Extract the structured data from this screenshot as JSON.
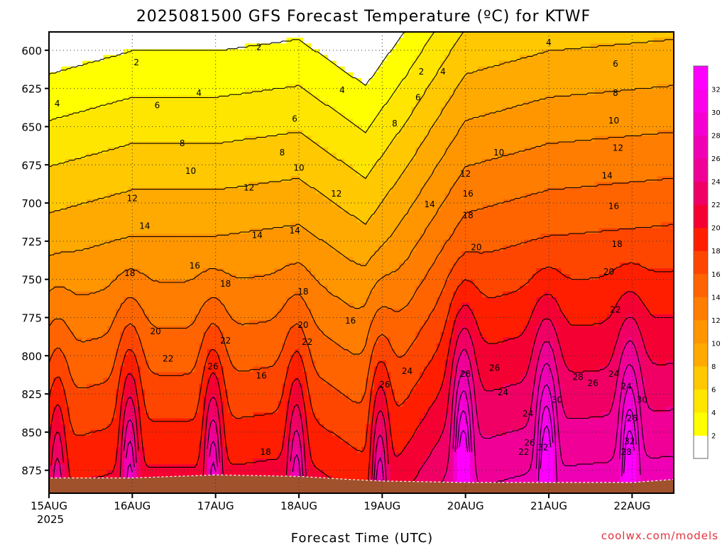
{
  "chart_data": {
    "type": "heatmap",
    "title": "2025081500 GFS Forecast Temperature (ºC) for KTWF",
    "xlabel": "Forecast Time (UTC)",
    "ylabel": "",
    "credit": "coolwx.com/models",
    "x_ticks": [
      "15AUG",
      "16AUG",
      "17AUG",
      "18AUG",
      "19AUG",
      "20AUG",
      "21AUG",
      "22AUG"
    ],
    "x_year": "2025",
    "xlim_days": [
      0,
      7.5
    ],
    "y_ticks": [
      600,
      625,
      650,
      675,
      700,
      725,
      750,
      775,
      800,
      825,
      850,
      875
    ],
    "ylim": [
      588,
      890
    ],
    "y_inverted": true,
    "grid": true,
    "legend": "right colorbar",
    "colorbar": {
      "labels": [
        2,
        4,
        6,
        8,
        10,
        12,
        14,
        16,
        18,
        20,
        22,
        24,
        26,
        28,
        30,
        32
      ],
      "bands": [
        {
          "min": 0,
          "color": "#ffffff"
        },
        {
          "min": 2,
          "color": "#ffff00"
        },
        {
          "min": 4,
          "color": "#ffe600"
        },
        {
          "min": 6,
          "color": "#ffc800"
        },
        {
          "min": 8,
          "color": "#ffaa00"
        },
        {
          "min": 10,
          "color": "#ff9600"
        },
        {
          "min": 12,
          "color": "#ff7d00"
        },
        {
          "min": 14,
          "color": "#ff6400"
        },
        {
          "min": 16,
          "color": "#ff4600"
        },
        {
          "min": 18,
          "color": "#ff1e00"
        },
        {
          "min": 20,
          "color": "#f50032"
        },
        {
          "min": 22,
          "color": "#f00064"
        },
        {
          "min": 24,
          "color": "#f00096"
        },
        {
          "min": 26,
          "color": "#f000b4"
        },
        {
          "min": 28,
          "color": "#f500d2"
        },
        {
          "min": 30,
          "color": "#fa00eb"
        },
        {
          "min": 32,
          "color": "#ff00ff"
        }
      ]
    },
    "temperature_model": {
      "description": "temperature vs pressure: T = a + b*(p-600) + diurnal amplitude peaking near surface each afternoon",
      "base_at_600hPa": [
        {
          "day": 0.0,
          "t": 1.0
        },
        {
          "day": 1.0,
          "t": 2.0
        },
        {
          "day": 2.0,
          "t": 2.0
        },
        {
          "day": 3.0,
          "t": 2.5
        },
        {
          "day": 3.8,
          "t": 0.5
        },
        {
          "day": 4.3,
          "t": 3.0
        },
        {
          "day": 5.0,
          "t": 7.0
        },
        {
          "day": 6.0,
          "t": 8.0
        },
        {
          "day": 7.5,
          "t": 8.5
        }
      ],
      "lapse_per_hPa": 0.066,
      "diurnal_peaks": [
        {
          "day": 0.1,
          "amp": 6
        },
        {
          "day": 0.97,
          "amp": 9
        },
        {
          "day": 1.97,
          "amp": 9
        },
        {
          "day": 2.97,
          "amp": 7
        },
        {
          "day": 3.97,
          "amp": 8
        },
        {
          "day": 4.97,
          "amp": 12
        },
        {
          "day": 5.97,
          "amp": 11
        },
        {
          "day": 6.97,
          "amp": 10
        }
      ]
    },
    "contour_levels": [
      2,
      4,
      6,
      8,
      10,
      12,
      14,
      16,
      18,
      20,
      22,
      24,
      26,
      28,
      30,
      32
    ],
    "contour_labels": [
      {
        "day": 0.1,
        "p": 635,
        "t": 4
      },
      {
        "day": 1.05,
        "p": 608,
        "t": 2
      },
      {
        "day": 2.52,
        "p": 598,
        "t": 2
      },
      {
        "day": 4.47,
        "p": 614,
        "t": 2
      },
      {
        "day": 4.73,
        "p": 614,
        "t": 4
      },
      {
        "day": 3.52,
        "p": 626,
        "t": 4
      },
      {
        "day": 1.8,
        "p": 628,
        "t": 4
      },
      {
        "day": 1.3,
        "p": 636,
        "t": 6
      },
      {
        "day": 4.43,
        "p": 631,
        "t": 6
      },
      {
        "day": 2.95,
        "p": 645,
        "t": 6
      },
      {
        "day": 1.6,
        "p": 661,
        "t": 8
      },
      {
        "day": 2.8,
        "p": 667,
        "t": 8
      },
      {
        "day": 4.15,
        "p": 648,
        "t": 8
      },
      {
        "day": 5.4,
        "p": 667,
        "t": 10
      },
      {
        "day": 1.7,
        "p": 679,
        "t": 10
      },
      {
        "day": 3.0,
        "p": 677,
        "t": 10
      },
      {
        "day": 1.0,
        "p": 697,
        "t": 12
      },
      {
        "day": 2.4,
        "p": 690,
        "t": 12
      },
      {
        "day": 3.45,
        "p": 694,
        "t": 12
      },
      {
        "day": 5.0,
        "p": 681,
        "t": 12
      },
      {
        "day": 1.15,
        "p": 715,
        "t": 14
      },
      {
        "day": 2.5,
        "p": 721,
        "t": 14
      },
      {
        "day": 2.95,
        "p": 718,
        "t": 14
      },
      {
        "day": 4.57,
        "p": 701,
        "t": 14
      },
      {
        "day": 5.03,
        "p": 694,
        "t": 16
      },
      {
        "day": 0.97,
        "p": 746,
        "t": 18
      },
      {
        "day": 1.75,
        "p": 741,
        "t": 16
      },
      {
        "day": 2.12,
        "p": 753,
        "t": 18
      },
      {
        "day": 3.05,
        "p": 758,
        "t": 18
      },
      {
        "day": 3.62,
        "p": 777,
        "t": 16
      },
      {
        "day": 5.03,
        "p": 708,
        "t": 18
      },
      {
        "day": 5.13,
        "p": 729,
        "t": 20
      },
      {
        "day": 1.28,
        "p": 784,
        "t": 20
      },
      {
        "day": 2.12,
        "p": 790,
        "t": 22
      },
      {
        "day": 3.05,
        "p": 780,
        "t": 20
      },
      {
        "day": 3.1,
        "p": 791,
        "t": 22
      },
      {
        "day": 1.43,
        "p": 802,
        "t": 22
      },
      {
        "day": 1.97,
        "p": 807,
        "t": 26
      },
      {
        "day": 2.55,
        "p": 813,
        "t": 16
      },
      {
        "day": 2.6,
        "p": 863,
        "t": 18
      },
      {
        "day": 4.3,
        "p": 810,
        "t": 24
      },
      {
        "day": 4.03,
        "p": 819,
        "t": 26
      },
      {
        "day": 5.0,
        "p": 812,
        "t": 28
      },
      {
        "day": 5.35,
        "p": 808,
        "t": 26
      },
      {
        "day": 5.45,
        "p": 824,
        "t": 24
      },
      {
        "day": 5.75,
        "p": 838,
        "t": 24
      },
      {
        "day": 5.77,
        "p": 857,
        "t": 26
      },
      {
        "day": 5.7,
        "p": 863,
        "t": 22
      },
      {
        "day": 5.93,
        "p": 860,
        "t": 32
      },
      {
        "day": 6.1,
        "p": 829,
        "t": 30
      },
      {
        "day": 6.35,
        "p": 814,
        "t": 28
      },
      {
        "day": 6.53,
        "p": 818,
        "t": 26
      },
      {
        "day": 6.78,
        "p": 812,
        "t": 24
      },
      {
        "day": 6.93,
        "p": 820,
        "t": 24
      },
      {
        "day": 7.0,
        "p": 841,
        "t": 26
      },
      {
        "day": 7.12,
        "p": 829,
        "t": 30
      },
      {
        "day": 6.97,
        "p": 856,
        "t": 32
      },
      {
        "day": 6.93,
        "p": 863,
        "t": 28
      },
      {
        "day": 6.8,
        "p": 770,
        "t": 22
      },
      {
        "day": 6.72,
        "p": 745,
        "t": 20
      },
      {
        "day": 6.82,
        "p": 727,
        "t": 18
      },
      {
        "day": 6.78,
        "p": 702,
        "t": 16
      },
      {
        "day": 6.7,
        "p": 682,
        "t": 14
      },
      {
        "day": 6.83,
        "p": 664,
        "t": 12
      },
      {
        "day": 6.78,
        "p": 646,
        "t": 10
      },
      {
        "day": 6.8,
        "p": 628,
        "t": 8
      },
      {
        "day": 6.8,
        "p": 609,
        "t": 6
      },
      {
        "day": 6.0,
        "p": 595,
        "t": 4
      }
    ],
    "terrain_pressure": [
      {
        "day": 0.0,
        "p": 880
      },
      {
        "day": 1.0,
        "p": 880
      },
      {
        "day": 2.0,
        "p": 878
      },
      {
        "day": 3.0,
        "p": 879
      },
      {
        "day": 3.6,
        "p": 881
      },
      {
        "day": 4.0,
        "p": 882
      },
      {
        "day": 5.0,
        "p": 883
      },
      {
        "day": 6.0,
        "p": 883
      },
      {
        "day": 7.0,
        "p": 883
      },
      {
        "day": 7.5,
        "p": 881
      }
    ]
  }
}
